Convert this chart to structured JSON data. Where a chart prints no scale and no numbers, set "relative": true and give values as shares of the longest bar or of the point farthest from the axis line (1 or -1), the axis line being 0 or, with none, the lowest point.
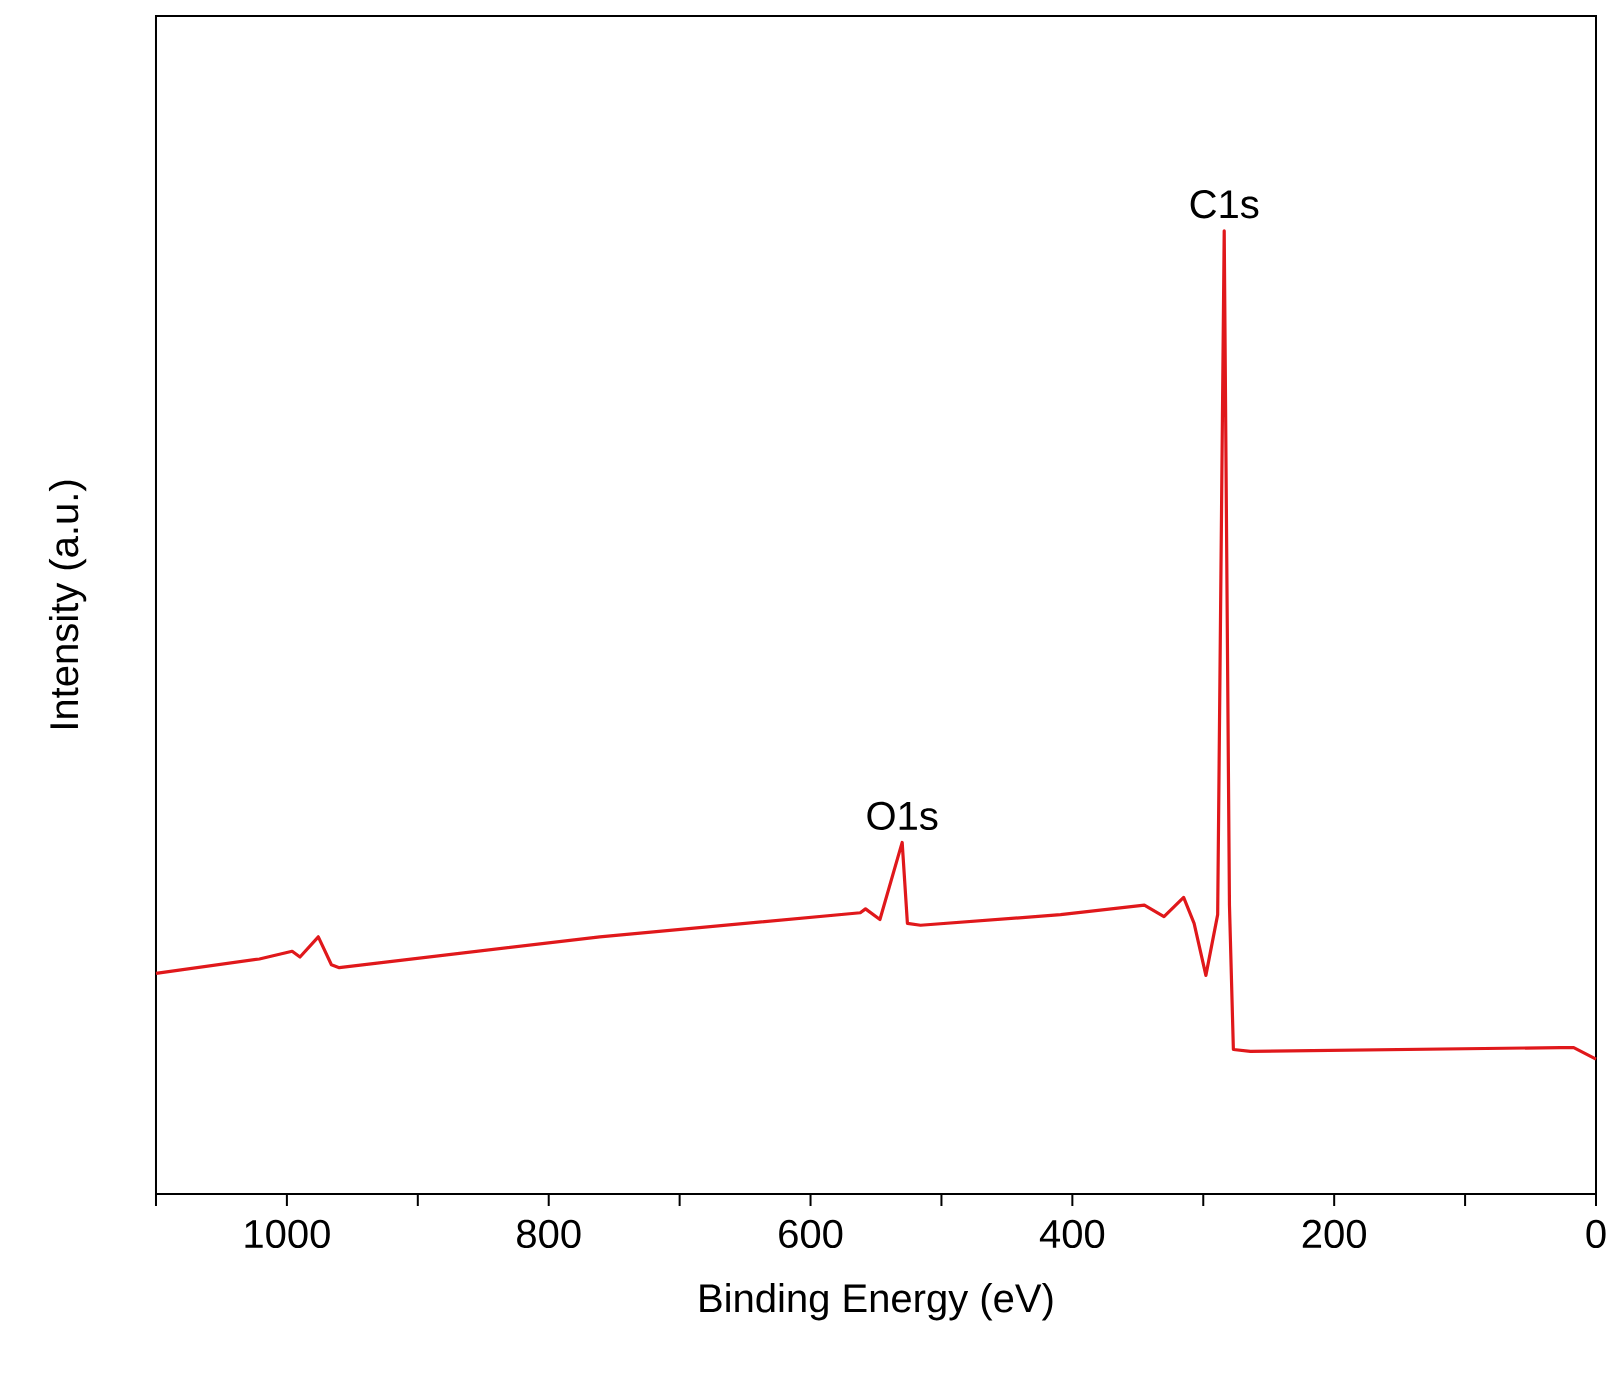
{
  "chart_data": {
    "type": "line",
    "xlabel": "Binding Energy (eV)",
    "ylabel": "Intensity (a.u.)",
    "relative": true,
    "xlim": [
      1100,
      0
    ],
    "xticks": [
      {
        "value": 1100,
        "label": null
      },
      1000,
      {
        "value": 900,
        "label": null
      },
      800,
      {
        "value": 700,
        "label": null
      },
      600,
      {
        "value": 500,
        "label": null
      },
      400,
      {
        "value": 300,
        "label": null
      },
      200,
      {
        "value": 100,
        "label": null
      },
      0
    ],
    "grid": false,
    "marker": "none",
    "line_style": "solid",
    "annotations": [
      {
        "text": "O1s",
        "x": 530,
        "y": 0.365
      },
      {
        "text": "C1s",
        "x": 284,
        "y": 1.0
      }
    ],
    "series": [
      {
        "color": "#e0181b",
        "x": [
          1100,
          1021,
          996,
          990,
          976,
          966,
          960,
          761,
          562,
          558,
          547,
          530,
          526,
          516,
          409,
          345,
          330,
          315,
          307,
          298,
          289,
          284,
          280,
          277,
          264,
          27,
          17,
          0
        ],
        "values": [
          0.229,
          0.244,
          0.252,
          0.246,
          0.267,
          0.238,
          0.235,
          0.267,
          0.292,
          0.296,
          0.285,
          0.365,
          0.281,
          0.279,
          0.29,
          0.3,
          0.288,
          0.308,
          0.281,
          0.227,
          0.29,
          1.0,
          0.3,
          0.15,
          0.148,
          0.152,
          0.152,
          0.14
        ]
      }
    ]
  }
}
